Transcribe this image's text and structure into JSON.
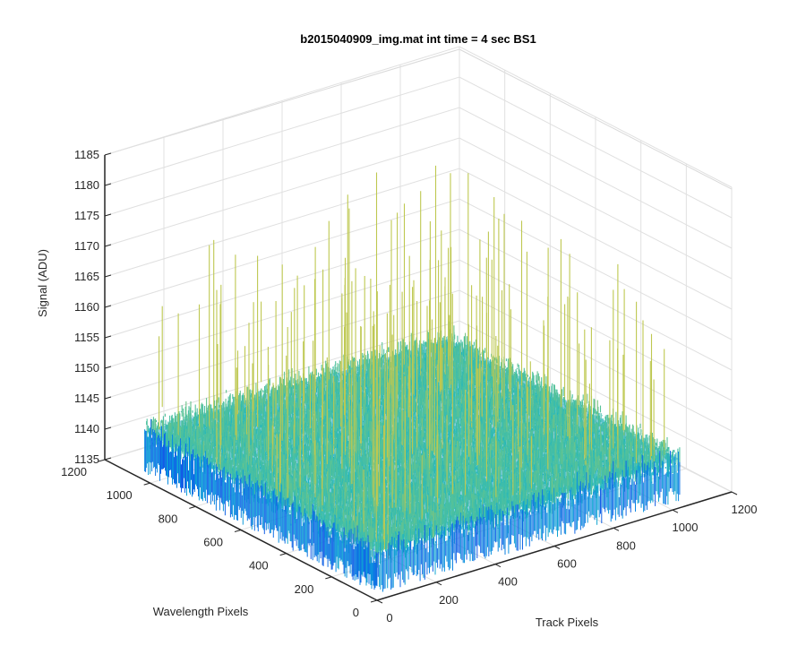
{
  "chart_data": {
    "type": "surface",
    "title": "b2015040909_img.mat int time = 4 sec   BS1",
    "xlabel": "Track Pixels",
    "ylabel": "Wavelength Pixels",
    "zlabel": "Signal (ADU)",
    "xlim": [
      0,
      1200
    ],
    "ylim": [
      0,
      1200
    ],
    "zlim": [
      1135,
      1185
    ],
    "xticks": [
      "0",
      "200",
      "400",
      "600",
      "800",
      "1000",
      "1200"
    ],
    "yticks": [
      "0",
      "200",
      "400",
      "600",
      "800",
      "1000",
      "1200"
    ],
    "zticks": [
      "1135",
      "1140",
      "1145",
      "1150",
      "1155",
      "1160",
      "1165",
      "1170",
      "1175",
      "1180",
      "1185"
    ],
    "data_extent": {
      "x": [
        0,
        1024
      ],
      "y": [
        0,
        1024
      ]
    },
    "signal": {
      "mean": 1143,
      "min": 1135,
      "max": 1180
    },
    "grid": true,
    "colormap": "parula"
  }
}
